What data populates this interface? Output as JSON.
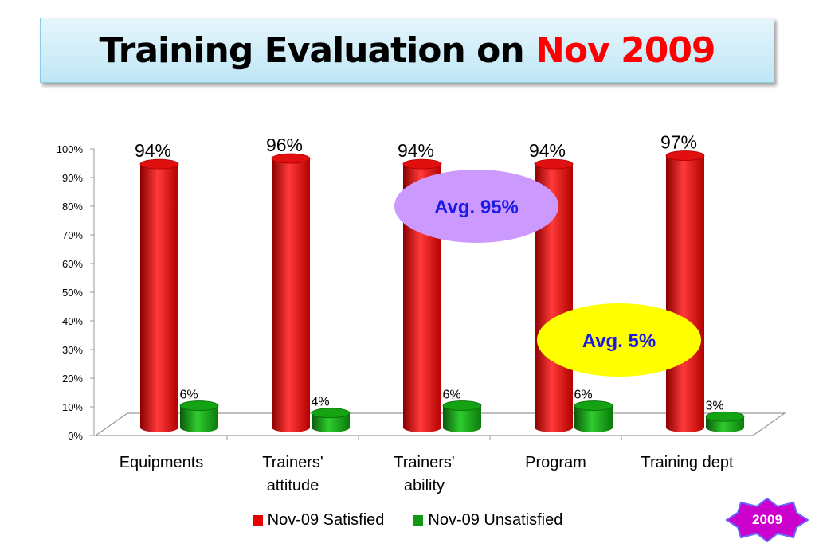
{
  "title": {
    "main": "Training Evaluation on ",
    "highlight": "Nov 2009"
  },
  "chart_data": {
    "type": "bar",
    "categories": [
      [
        "Equipments"
      ],
      [
        "Trainers'",
        "attitude"
      ],
      [
        "Trainers'",
        "ability"
      ],
      [
        "Program"
      ],
      [
        "Training dept"
      ]
    ],
    "series": [
      {
        "name": "Nov-09 Satisfied",
        "color": "#e60000",
        "values": [
          94,
          96,
          94,
          94,
          97
        ],
        "labels": [
          "94%",
          "96%",
          "94%",
          "94%",
          "97%"
        ]
      },
      {
        "name": "Nov-09 Unsatisfied",
        "color": "#119911",
        "values": [
          6,
          4,
          6,
          6,
          3
        ],
        "labels": [
          "6%",
          "4%",
          "6%",
          "6%",
          "3%"
        ]
      }
    ],
    "ylim": [
      0,
      100
    ],
    "yticks": [
      "0%",
      "10%",
      "20%",
      "30%",
      "40%",
      "50%",
      "60%",
      "70%",
      "80%",
      "90%",
      "100%"
    ],
    "legend": "bottom",
    "annotations": [
      {
        "text": "Avg. 95%",
        "fill": "#cc99ff"
      },
      {
        "text": "Avg. 5%",
        "fill": "#ffff00"
      }
    ]
  },
  "badge": {
    "text": "2009",
    "fill": "#cc00cc",
    "stroke": "#6666ff"
  }
}
